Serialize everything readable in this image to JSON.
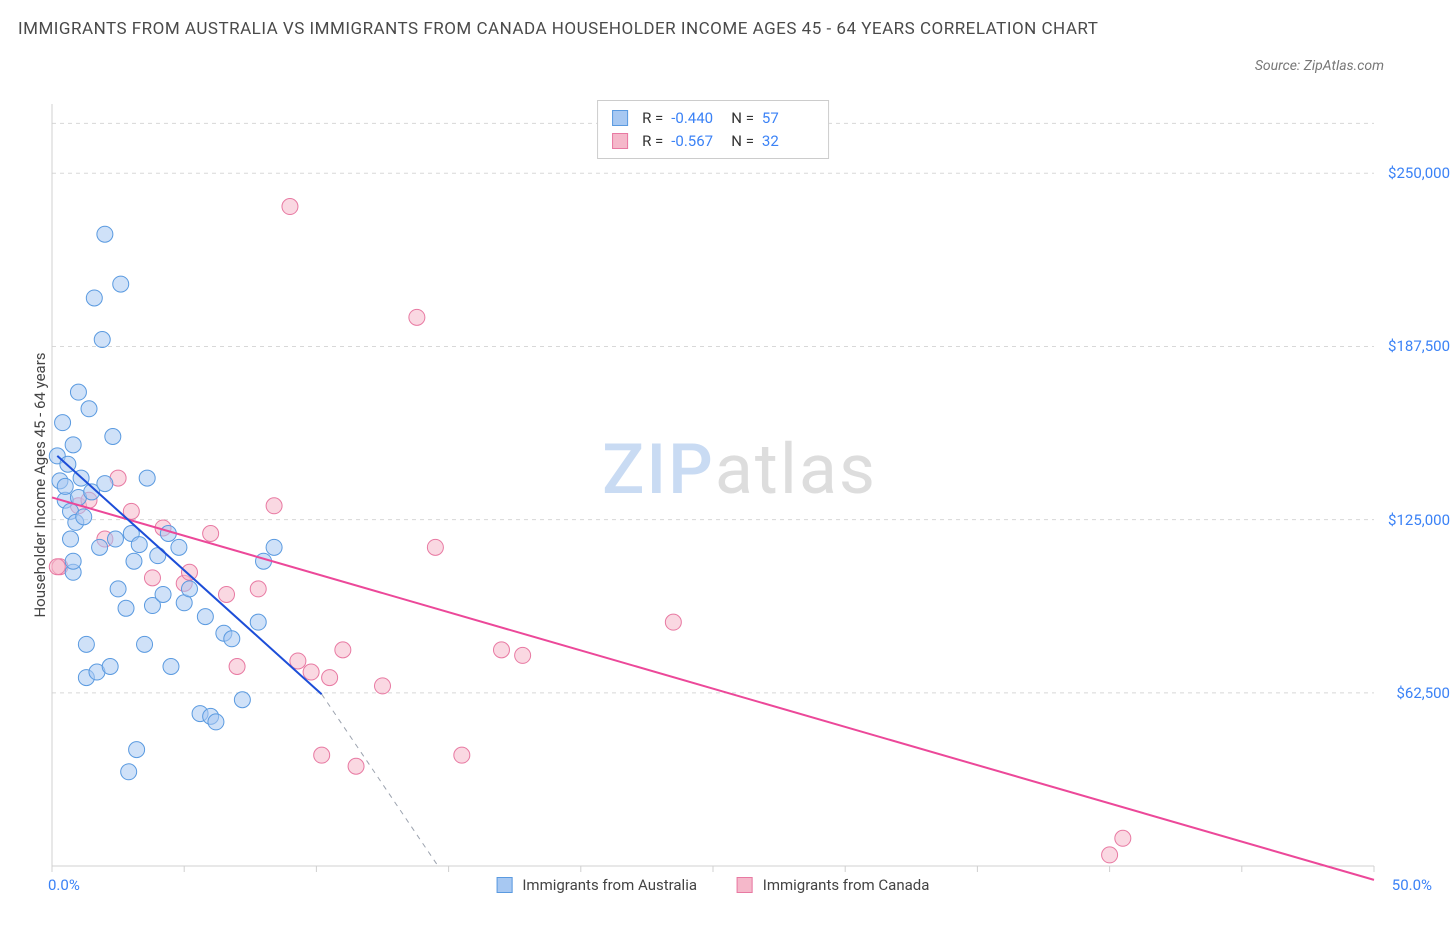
{
  "title": "IMMIGRANTS FROM AUSTRALIA VS IMMIGRANTS FROM CANADA HOUSEHOLDER INCOME AGES 45 - 64 YEARS CORRELATION CHART",
  "source": "Source: ZipAtlas.com",
  "watermark": {
    "part1": "ZIP",
    "part2": "atlas"
  },
  "chart": {
    "type": "scatter",
    "background_color": "#ffffff",
    "grid_color": "#d8d8d8",
    "grid_dash": "4,4",
    "axis_color": "#d0d0d0",
    "tick_color": "#3b82f6",
    "label_color": "#444444",
    "ylabel": "Householder Income Ages 45 - 64 years",
    "label_fontsize": 15,
    "xlim": [
      0,
      50
    ],
    "ylim": [
      0,
      275000
    ],
    "xticks_major": [
      0,
      5,
      10,
      15,
      20,
      25,
      30,
      35,
      40,
      45,
      50
    ],
    "xtick_labels": {
      "start": "0.0%",
      "end": "50.0%"
    },
    "yticks": [
      62500,
      125000,
      187500,
      250000
    ],
    "ytick_labels": [
      "$62,500",
      "$125,000",
      "$187,500",
      "$250,000"
    ],
    "ygrid_extra_top": 268000
  },
  "series": {
    "australia": {
      "label": "Immigrants from Australia",
      "legend_label": "Immigrants from Australia",
      "marker_fill": "#a7c8f2",
      "marker_fill_opacity": 0.55,
      "marker_stroke": "#5a9ae0",
      "marker_radius": 8,
      "trend_color": "#1d4ed8",
      "trend_width": 2,
      "trend": {
        "x1": 0.2,
        "y1": 148000,
        "x2": 10.2,
        "y2": 62000
      },
      "trend_dash_extension": {
        "x1": 10.2,
        "y1": 62000,
        "x2": 14.6,
        "y2": 0
      },
      "stats": {
        "R": "-0.440",
        "N": "57"
      },
      "points": [
        [
          0.2,
          148000
        ],
        [
          0.3,
          139000
        ],
        [
          0.4,
          160000
        ],
        [
          0.5,
          132000
        ],
        [
          0.5,
          137000
        ],
        [
          0.6,
          145000
        ],
        [
          0.7,
          128000
        ],
        [
          0.7,
          118000
        ],
        [
          0.8,
          106000
        ],
        [
          0.8,
          110000
        ],
        [
          0.8,
          152000
        ],
        [
          0.9,
          124000
        ],
        [
          1.0,
          171000
        ],
        [
          1.0,
          133000
        ],
        [
          1.1,
          140000
        ],
        [
          1.2,
          126000
        ],
        [
          1.3,
          80000
        ],
        [
          1.3,
          68000
        ],
        [
          1.4,
          165000
        ],
        [
          1.5,
          135000
        ],
        [
          1.6,
          205000
        ],
        [
          1.7,
          70000
        ],
        [
          1.8,
          115000
        ],
        [
          1.9,
          190000
        ],
        [
          2.0,
          138000
        ],
        [
          2.2,
          72000
        ],
        [
          2.4,
          118000
        ],
        [
          2.5,
          100000
        ],
        [
          2.6,
          210000
        ],
        [
          2.8,
          93000
        ],
        [
          3.0,
          120000
        ],
        [
          3.1,
          110000
        ],
        [
          3.3,
          116000
        ],
        [
          3.5,
          80000
        ],
        [
          3.6,
          140000
        ],
        [
          3.8,
          94000
        ],
        [
          4.0,
          112000
        ],
        [
          4.2,
          98000
        ],
        [
          4.4,
          120000
        ],
        [
          4.5,
          72000
        ],
        [
          4.8,
          115000
        ],
        [
          5.0,
          95000
        ],
        [
          5.2,
          100000
        ],
        [
          5.6,
          55000
        ],
        [
          5.8,
          90000
        ],
        [
          6.0,
          54000
        ],
        [
          6.2,
          52000
        ],
        [
          6.5,
          84000
        ],
        [
          6.8,
          82000
        ],
        [
          7.2,
          60000
        ],
        [
          7.8,
          88000
        ],
        [
          8.0,
          110000
        ],
        [
          8.4,
          115000
        ],
        [
          2.0,
          228000
        ],
        [
          2.9,
          34000
        ],
        [
          2.3,
          155000
        ],
        [
          3.2,
          42000
        ]
      ]
    },
    "canada": {
      "label": "Immigrants from Canada",
      "legend_label": "Immigrants from Canada",
      "marker_fill": "#f5b8ca",
      "marker_fill_opacity": 0.55,
      "marker_stroke": "#e879a2",
      "marker_radius": 8,
      "trend_color": "#ec4899",
      "trend_width": 2,
      "trend": {
        "x1": 0,
        "y1": 133000,
        "x2": 50,
        "y2": -5000
      },
      "stats": {
        "R": "-0.567",
        "N": "32"
      },
      "points": [
        [
          0.3,
          108000
        ],
        [
          1.0,
          130000
        ],
        [
          1.4,
          132000
        ],
        [
          2.0,
          118000
        ],
        [
          2.5,
          140000
        ],
        [
          3.0,
          128000
        ],
        [
          3.8,
          104000
        ],
        [
          4.2,
          122000
        ],
        [
          5.0,
          102000
        ],
        [
          5.2,
          106000
        ],
        [
          6.0,
          120000
        ],
        [
          6.6,
          98000
        ],
        [
          7.0,
          72000
        ],
        [
          7.8,
          100000
        ],
        [
          8.4,
          130000
        ],
        [
          9.0,
          238000
        ],
        [
          9.3,
          74000
        ],
        [
          9.8,
          70000
        ],
        [
          10.2,
          40000
        ],
        [
          10.5,
          68000
        ],
        [
          11.0,
          78000
        ],
        [
          11.5,
          36000
        ],
        [
          12.5,
          65000
        ],
        [
          13.8,
          198000
        ],
        [
          14.5,
          115000
        ],
        [
          15.5,
          40000
        ],
        [
          17.0,
          78000
        ],
        [
          17.8,
          76000
        ],
        [
          23.5,
          88000
        ],
        [
          40.5,
          10000
        ],
        [
          40.0,
          4000
        ],
        [
          0.2,
          108000
        ]
      ]
    }
  },
  "stats_box": {
    "r_label": "R =",
    "n_label": "N ="
  },
  "bottom_legend": {
    "items": [
      {
        "key": "australia"
      },
      {
        "key": "canada"
      }
    ]
  }
}
